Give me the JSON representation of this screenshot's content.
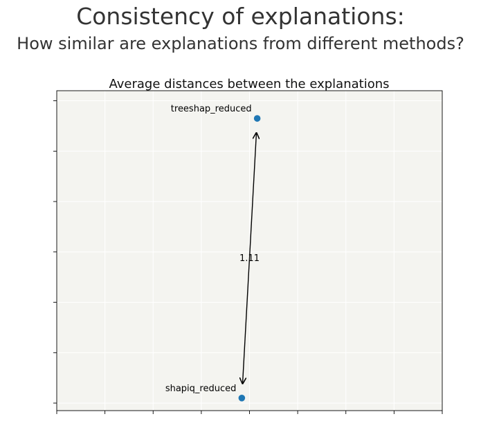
{
  "header": {
    "title": "Consistency of explanations:",
    "subtitle": "How similar are explanations from different methods?"
  },
  "chart_data": {
    "type": "scatter",
    "title": "Average distances between the explanations",
    "xlabel": "",
    "ylabel": "",
    "grid": true,
    "background_color": "#f4f4f0",
    "point_color": "#1f77b4",
    "points": [
      {
        "label": "treeshap_reduced",
        "x": 0.52,
        "y": 0.88
      },
      {
        "label": "shapiq_reduced",
        "x": 0.48,
        "y": -0.23
      }
    ],
    "distances": [
      {
        "from": "shapiq_reduced",
        "to": "treeshap_reduced",
        "value_label": "1.11"
      }
    ],
    "xlim": [
      0,
      1
    ],
    "ylim": [
      -0.28,
      0.99
    ],
    "x_ticks": [
      0,
      0.125,
      0.25,
      0.375,
      0.5,
      0.625,
      0.75,
      0.875,
      1
    ],
    "y_ticks": [
      -0.25,
      -0.05,
      0.15,
      0.35,
      0.55,
      0.75,
      0.95
    ]
  }
}
